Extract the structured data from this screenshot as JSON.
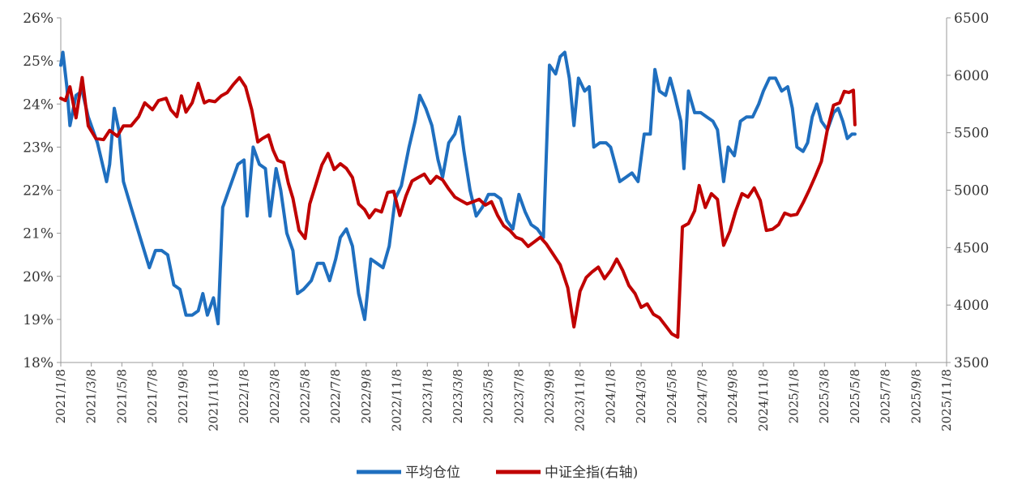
{
  "chart_data": {
    "type": "line",
    "title": "",
    "xlabel": "",
    "ylabel_left": "",
    "ylabel_right": "",
    "x_range": [
      "2021/1/8",
      "2025/11/8"
    ],
    "xtick_labels": [
      "2021/1/8",
      "2021/3/8",
      "2021/5/8",
      "2021/7/8",
      "2021/9/8",
      "2021/11/8",
      "2022/1/8",
      "2022/3/8",
      "2022/5/8",
      "2022/7/8",
      "2022/9/8",
      "2022/11/8",
      "2023/1/8",
      "2023/3/8",
      "2023/5/8",
      "2023/7/8",
      "2023/9/8",
      "2023/11/8",
      "2024/1/8",
      "2024/3/8",
      "2024/5/8",
      "2024/7/8",
      "2024/9/8",
      "2024/11/8",
      "2025/1/8",
      "2025/3/8",
      "2025/5/8",
      "2025/7/8",
      "2025/9/8",
      "2025/11/8"
    ],
    "left_axis": {
      "min": 18,
      "max": 26,
      "ticks": [
        18,
        19,
        20,
        21,
        22,
        23,
        24,
        25,
        26
      ],
      "tick_labels": [
        "18%",
        "19%",
        "20%",
        "21%",
        "22%",
        "23%",
        "24%",
        "25%",
        "26%"
      ]
    },
    "right_axis": {
      "min": 3500,
      "max": 6500,
      "ticks": [
        3500,
        4000,
        4500,
        5000,
        5500,
        6000,
        6500
      ],
      "tick_labels": [
        "3500",
        "4000",
        "4500",
        "5000",
        "5500",
        "6000",
        "6500"
      ]
    },
    "legend_position": "bottom-center",
    "series": [
      {
        "name": "平均仓位",
        "axis": "left",
        "color": "#1f6fbf",
        "points": [
          [
            0,
            24.9
          ],
          [
            0.07,
            25.2
          ],
          [
            0.2,
            24.4
          ],
          [
            0.3,
            23.5
          ],
          [
            0.5,
            24.2
          ],
          [
            0.7,
            24.3
          ],
          [
            0.9,
            23.7
          ],
          [
            1.2,
            23.1
          ],
          [
            1.5,
            22.2
          ],
          [
            1.6,
            22.6
          ],
          [
            1.75,
            23.9
          ],
          [
            1.9,
            23.4
          ],
          [
            2.05,
            22.2
          ],
          [
            2.3,
            21.6
          ],
          [
            2.6,
            20.9
          ],
          [
            2.9,
            20.2
          ],
          [
            3.1,
            20.6
          ],
          [
            3.3,
            20.6
          ],
          [
            3.5,
            20.5
          ],
          [
            3.7,
            19.8
          ],
          [
            3.9,
            19.7
          ],
          [
            4.1,
            19.1
          ],
          [
            4.3,
            19.1
          ],
          [
            4.5,
            19.2
          ],
          [
            4.65,
            19.6
          ],
          [
            4.8,
            19.1
          ],
          [
            5.0,
            19.5
          ],
          [
            5.15,
            18.9
          ],
          [
            5.3,
            21.6
          ],
          [
            5.5,
            22.0
          ],
          [
            5.8,
            22.6
          ],
          [
            6.0,
            22.7
          ],
          [
            6.1,
            21.4
          ],
          [
            6.3,
            23.0
          ],
          [
            6.5,
            22.6
          ],
          [
            6.7,
            22.5
          ],
          [
            6.85,
            21.4
          ],
          [
            7.05,
            22.5
          ],
          [
            7.2,
            22.0
          ],
          [
            7.4,
            21.0
          ],
          [
            7.6,
            20.6
          ],
          [
            7.75,
            19.6
          ],
          [
            7.95,
            19.7
          ],
          [
            8.2,
            19.9
          ],
          [
            8.4,
            20.3
          ],
          [
            8.6,
            20.3
          ],
          [
            8.8,
            19.9
          ],
          [
            9.0,
            20.4
          ],
          [
            9.15,
            20.9
          ],
          [
            9.35,
            21.1
          ],
          [
            9.55,
            20.7
          ],
          [
            9.75,
            19.6
          ],
          [
            9.95,
            19.0
          ],
          [
            10.15,
            20.4
          ],
          [
            10.35,
            20.3
          ],
          [
            10.55,
            20.2
          ],
          [
            10.75,
            20.7
          ],
          [
            10.95,
            21.8
          ],
          [
            11.15,
            22.1
          ],
          [
            11.4,
            23.0
          ],
          [
            11.6,
            23.6
          ],
          [
            11.75,
            24.2
          ],
          [
            11.95,
            23.9
          ],
          [
            12.15,
            23.5
          ],
          [
            12.35,
            22.7
          ],
          [
            12.5,
            22.3
          ],
          [
            12.7,
            23.1
          ],
          [
            12.9,
            23.3
          ],
          [
            13.05,
            23.7
          ],
          [
            13.2,
            22.9
          ],
          [
            13.4,
            22.0
          ],
          [
            13.6,
            21.4
          ],
          [
            13.8,
            21.6
          ],
          [
            14.0,
            21.9
          ],
          [
            14.2,
            21.9
          ],
          [
            14.4,
            21.8
          ],
          [
            14.6,
            21.3
          ],
          [
            14.8,
            21.1
          ],
          [
            15.0,
            21.9
          ],
          [
            15.2,
            21.5
          ],
          [
            15.4,
            21.2
          ],
          [
            15.6,
            21.1
          ],
          [
            15.8,
            20.9
          ],
          [
            16.0,
            24.9
          ],
          [
            16.2,
            24.7
          ],
          [
            16.35,
            25.1
          ],
          [
            16.5,
            25.2
          ],
          [
            16.65,
            24.6
          ],
          [
            16.8,
            23.5
          ],
          [
            16.95,
            24.6
          ],
          [
            17.15,
            24.3
          ],
          [
            17.3,
            24.4
          ],
          [
            17.45,
            23.0
          ],
          [
            17.65,
            23.1
          ],
          [
            17.85,
            23.1
          ],
          [
            18.0,
            23.0
          ],
          [
            18.15,
            22.6
          ],
          [
            18.3,
            22.2
          ],
          [
            18.5,
            22.3
          ],
          [
            18.7,
            22.4
          ],
          [
            18.9,
            22.2
          ],
          [
            19.1,
            23.3
          ],
          [
            19.3,
            23.3
          ],
          [
            19.45,
            24.8
          ],
          [
            19.6,
            24.3
          ],
          [
            19.8,
            24.2
          ],
          [
            19.95,
            24.6
          ],
          [
            20.1,
            24.2
          ],
          [
            20.3,
            23.6
          ],
          [
            20.4,
            22.5
          ],
          [
            20.55,
            24.3
          ],
          [
            20.75,
            23.8
          ],
          [
            20.95,
            23.8
          ],
          [
            21.15,
            23.7
          ],
          [
            21.35,
            23.6
          ],
          [
            21.5,
            23.4
          ],
          [
            21.7,
            22.2
          ],
          [
            21.85,
            23.0
          ],
          [
            22.05,
            22.8
          ],
          [
            22.25,
            23.6
          ],
          [
            22.45,
            23.7
          ],
          [
            22.65,
            23.7
          ],
          [
            22.85,
            24.0
          ],
          [
            23.0,
            24.3
          ],
          [
            23.2,
            24.6
          ],
          [
            23.4,
            24.6
          ],
          [
            23.6,
            24.3
          ],
          [
            23.8,
            24.4
          ],
          [
            23.95,
            23.9
          ],
          [
            24.1,
            23.0
          ],
          [
            24.3,
            22.9
          ],
          [
            24.45,
            23.1
          ],
          [
            24.6,
            23.7
          ],
          [
            24.75,
            24.0
          ],
          [
            24.9,
            23.6
          ],
          [
            25.1,
            23.4
          ],
          [
            25.3,
            23.8
          ],
          [
            25.45,
            23.9
          ],
          [
            25.6,
            23.6
          ],
          [
            25.75,
            23.2
          ],
          [
            25.9,
            23.3
          ],
          [
            26.0,
            23.3
          ]
        ]
      },
      {
        "name": "中证全指(右轴)",
        "axis": "right",
        "color": "#c00000",
        "points": [
          [
            0,
            5800
          ],
          [
            0.15,
            5780
          ],
          [
            0.3,
            5900
          ],
          [
            0.5,
            5630
          ],
          [
            0.7,
            5980
          ],
          [
            0.9,
            5560
          ],
          [
            1.15,
            5450
          ],
          [
            1.4,
            5440
          ],
          [
            1.6,
            5520
          ],
          [
            1.85,
            5470
          ],
          [
            2.05,
            5560
          ],
          [
            2.3,
            5560
          ],
          [
            2.55,
            5640
          ],
          [
            2.75,
            5760
          ],
          [
            3.0,
            5700
          ],
          [
            3.2,
            5780
          ],
          [
            3.45,
            5800
          ],
          [
            3.6,
            5700
          ],
          [
            3.8,
            5640
          ],
          [
            3.95,
            5820
          ],
          [
            4.1,
            5680
          ],
          [
            4.3,
            5760
          ],
          [
            4.5,
            5930
          ],
          [
            4.7,
            5760
          ],
          [
            4.85,
            5780
          ],
          [
            5.05,
            5770
          ],
          [
            5.25,
            5820
          ],
          [
            5.45,
            5850
          ],
          [
            5.65,
            5920
          ],
          [
            5.85,
            5980
          ],
          [
            6.05,
            5900
          ],
          [
            6.25,
            5700
          ],
          [
            6.45,
            5420
          ],
          [
            6.6,
            5450
          ],
          [
            6.8,
            5480
          ],
          [
            6.95,
            5350
          ],
          [
            7.1,
            5260
          ],
          [
            7.3,
            5240
          ],
          [
            7.45,
            5060
          ],
          [
            7.6,
            4930
          ],
          [
            7.8,
            4650
          ],
          [
            8.0,
            4580
          ],
          [
            8.15,
            4880
          ],
          [
            8.35,
            5050
          ],
          [
            8.55,
            5220
          ],
          [
            8.75,
            5320
          ],
          [
            8.95,
            5180
          ],
          [
            9.15,
            5230
          ],
          [
            9.35,
            5190
          ],
          [
            9.55,
            5110
          ],
          [
            9.75,
            4880
          ],
          [
            9.95,
            4830
          ],
          [
            10.1,
            4760
          ],
          [
            10.3,
            4830
          ],
          [
            10.5,
            4810
          ],
          [
            10.7,
            4980
          ],
          [
            10.9,
            4990
          ],
          [
            11.1,
            4780
          ],
          [
            11.3,
            4950
          ],
          [
            11.5,
            5080
          ],
          [
            11.7,
            5110
          ],
          [
            11.9,
            5140
          ],
          [
            12.1,
            5060
          ],
          [
            12.3,
            5120
          ],
          [
            12.5,
            5090
          ],
          [
            12.7,
            5010
          ],
          [
            12.9,
            4940
          ],
          [
            13.1,
            4910
          ],
          [
            13.3,
            4880
          ],
          [
            13.5,
            4900
          ],
          [
            13.7,
            4920
          ],
          [
            13.9,
            4870
          ],
          [
            14.1,
            4900
          ],
          [
            14.3,
            4780
          ],
          [
            14.5,
            4690
          ],
          [
            14.7,
            4650
          ],
          [
            14.9,
            4590
          ],
          [
            15.1,
            4570
          ],
          [
            15.3,
            4510
          ],
          [
            15.5,
            4550
          ],
          [
            15.7,
            4590
          ],
          [
            15.9,
            4530
          ],
          [
            16.1,
            4450
          ],
          [
            16.35,
            4350
          ],
          [
            16.6,
            4150
          ],
          [
            16.8,
            3810
          ],
          [
            17.0,
            4120
          ],
          [
            17.2,
            4240
          ],
          [
            17.4,
            4290
          ],
          [
            17.6,
            4330
          ],
          [
            17.8,
            4230
          ],
          [
            18.0,
            4300
          ],
          [
            18.2,
            4400
          ],
          [
            18.4,
            4300
          ],
          [
            18.6,
            4170
          ],
          [
            18.8,
            4100
          ],
          [
            19.0,
            3980
          ],
          [
            19.2,
            4010
          ],
          [
            19.4,
            3920
          ],
          [
            19.6,
            3890
          ],
          [
            19.8,
            3820
          ],
          [
            20.0,
            3750
          ],
          [
            20.2,
            3720
          ],
          [
            20.35,
            4680
          ],
          [
            20.55,
            4710
          ],
          [
            20.75,
            4820
          ],
          [
            20.9,
            5040
          ],
          [
            21.1,
            4850
          ],
          [
            21.3,
            4970
          ],
          [
            21.5,
            4920
          ],
          [
            21.7,
            4520
          ],
          [
            21.9,
            4640
          ],
          [
            22.1,
            4820
          ],
          [
            22.3,
            4970
          ],
          [
            22.5,
            4940
          ],
          [
            22.7,
            5020
          ],
          [
            22.9,
            4910
          ],
          [
            23.1,
            4650
          ],
          [
            23.3,
            4660
          ],
          [
            23.5,
            4700
          ],
          [
            23.7,
            4800
          ],
          [
            23.9,
            4780
          ],
          [
            24.1,
            4790
          ],
          [
            24.3,
            4890
          ],
          [
            24.5,
            5000
          ],
          [
            24.7,
            5120
          ],
          [
            24.9,
            5250
          ],
          [
            25.1,
            5530
          ],
          [
            25.3,
            5740
          ],
          [
            25.5,
            5760
          ],
          [
            25.65,
            5860
          ],
          [
            25.8,
            5850
          ],
          [
            25.95,
            5870
          ],
          [
            26.0,
            5570
          ]
        ]
      }
    ]
  }
}
